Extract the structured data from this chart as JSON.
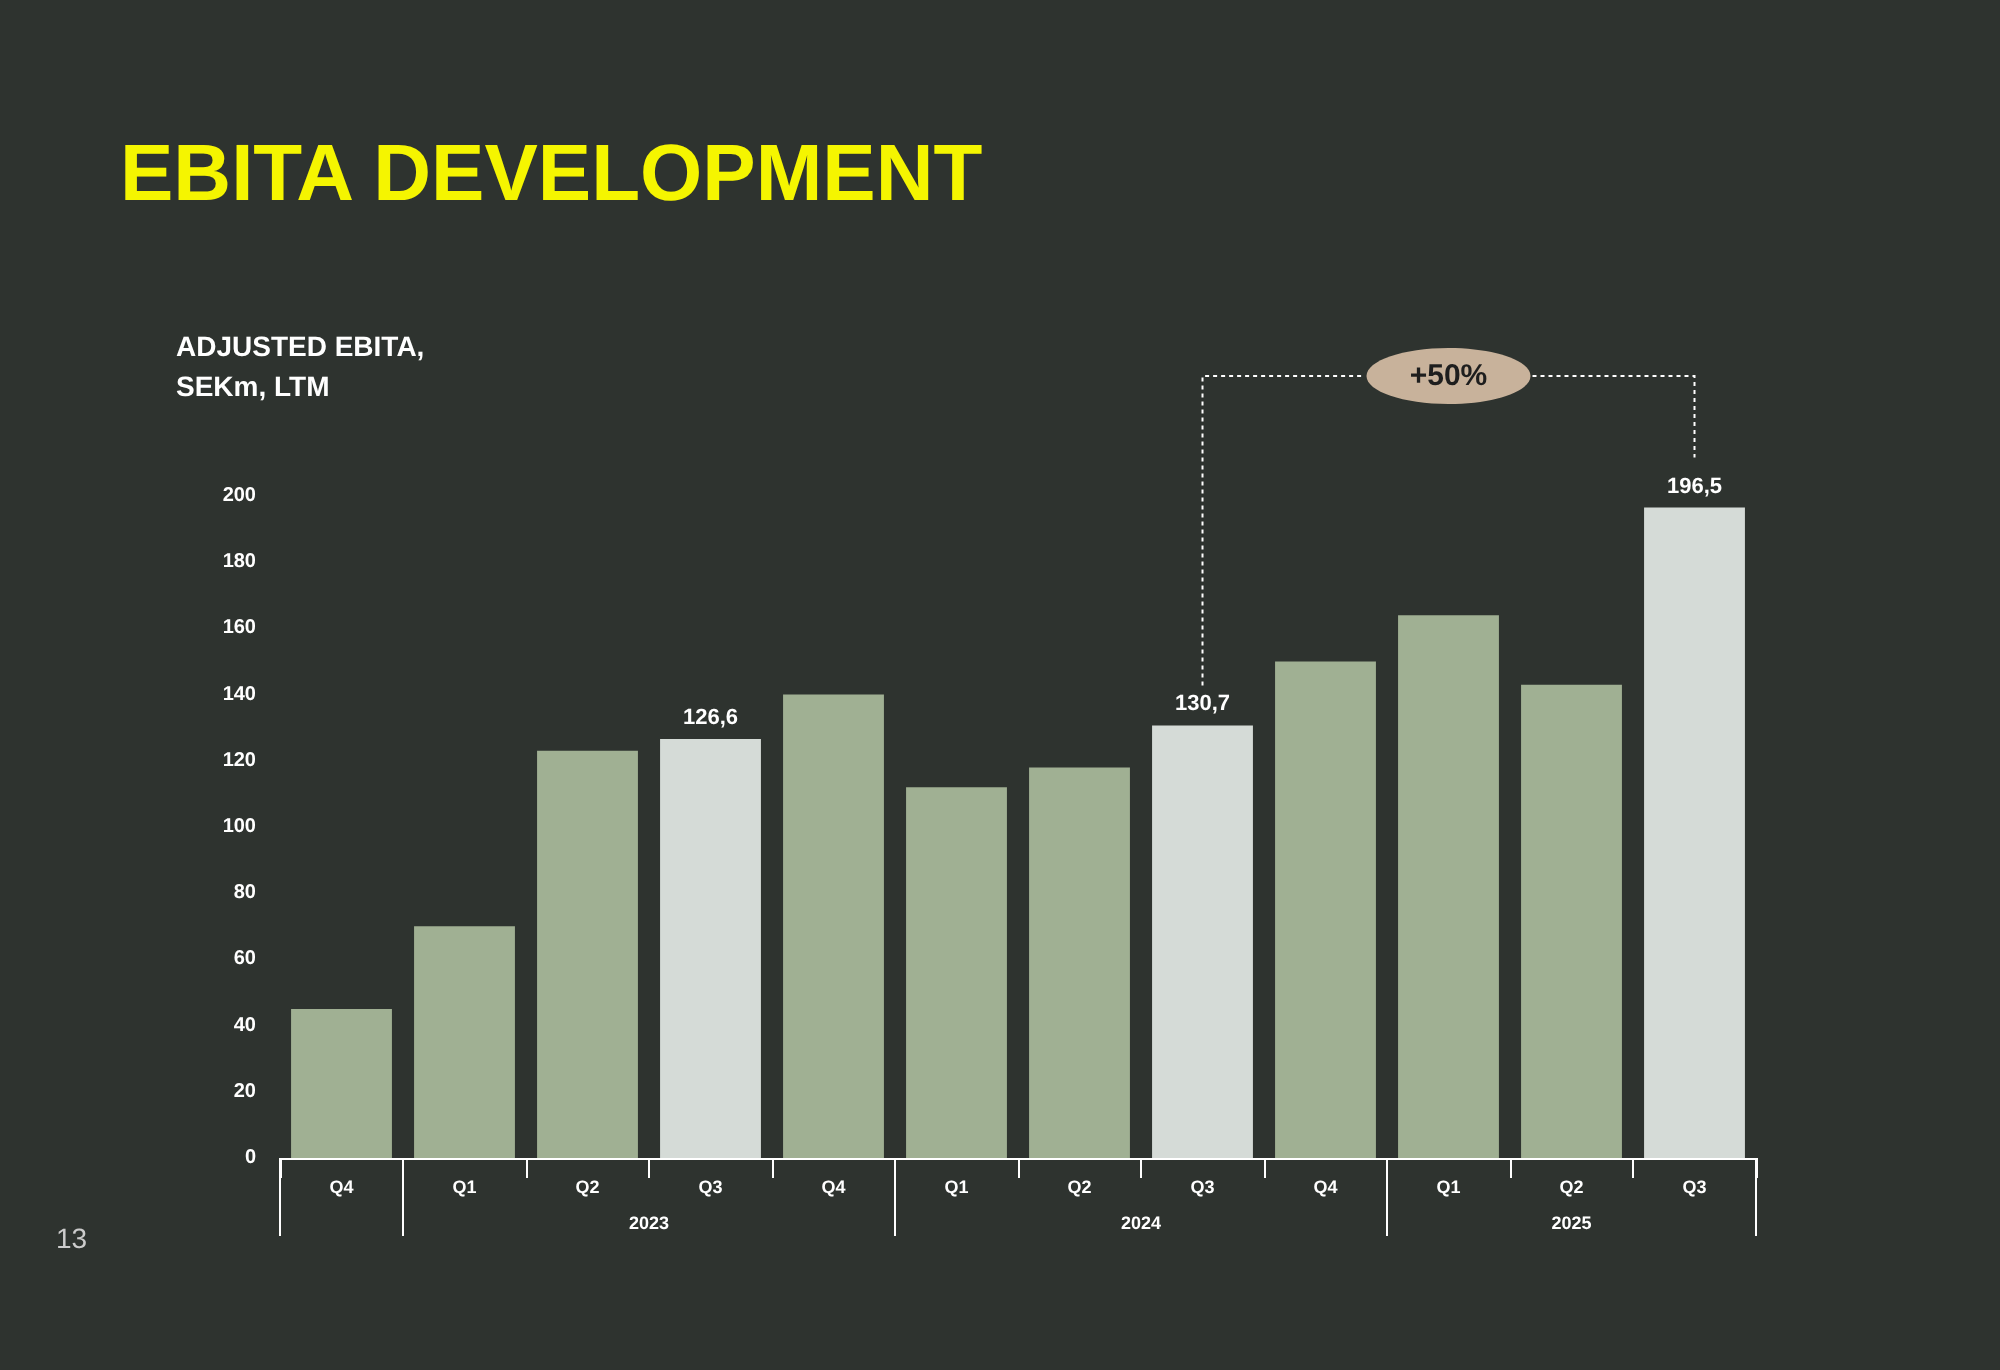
{
  "chart_data": {
    "type": "bar",
    "title": "EBITA DEVELOPMENT",
    "ylabel": "ADJUSTED EBITA,\nSEKm, LTM",
    "categories": [
      "Q4",
      "Q1",
      "Q2",
      "Q3",
      "Q4",
      "Q1",
      "Q2",
      "Q3",
      "Q4",
      "Q1",
      "Q2",
      "Q3"
    ],
    "values": [
      45,
      70,
      123,
      126.6,
      140,
      112,
      118,
      130.7,
      150,
      164,
      143,
      196.5
    ],
    "colors": [
      "#a0b093",
      "#a0b093",
      "#a0b093",
      "#d5dbd7",
      "#a0b093",
      "#a0b093",
      "#a0b093",
      "#d5dbd7",
      "#a0b093",
      "#a0b093",
      "#a0b093",
      "#d5dbd7"
    ],
    "value_labels": [
      null,
      null,
      null,
      "126,6",
      null,
      null,
      null,
      "130,7",
      null,
      null,
      null,
      "196,5"
    ],
    "ylim": [
      0,
      200
    ],
    "yticks": [
      0,
      20,
      40,
      60,
      80,
      100,
      120,
      140,
      160,
      180,
      200
    ],
    "grid": false,
    "annotations": [
      "2023",
      "2024",
      "2025",
      "+50%",
      "13"
    ]
  }
}
